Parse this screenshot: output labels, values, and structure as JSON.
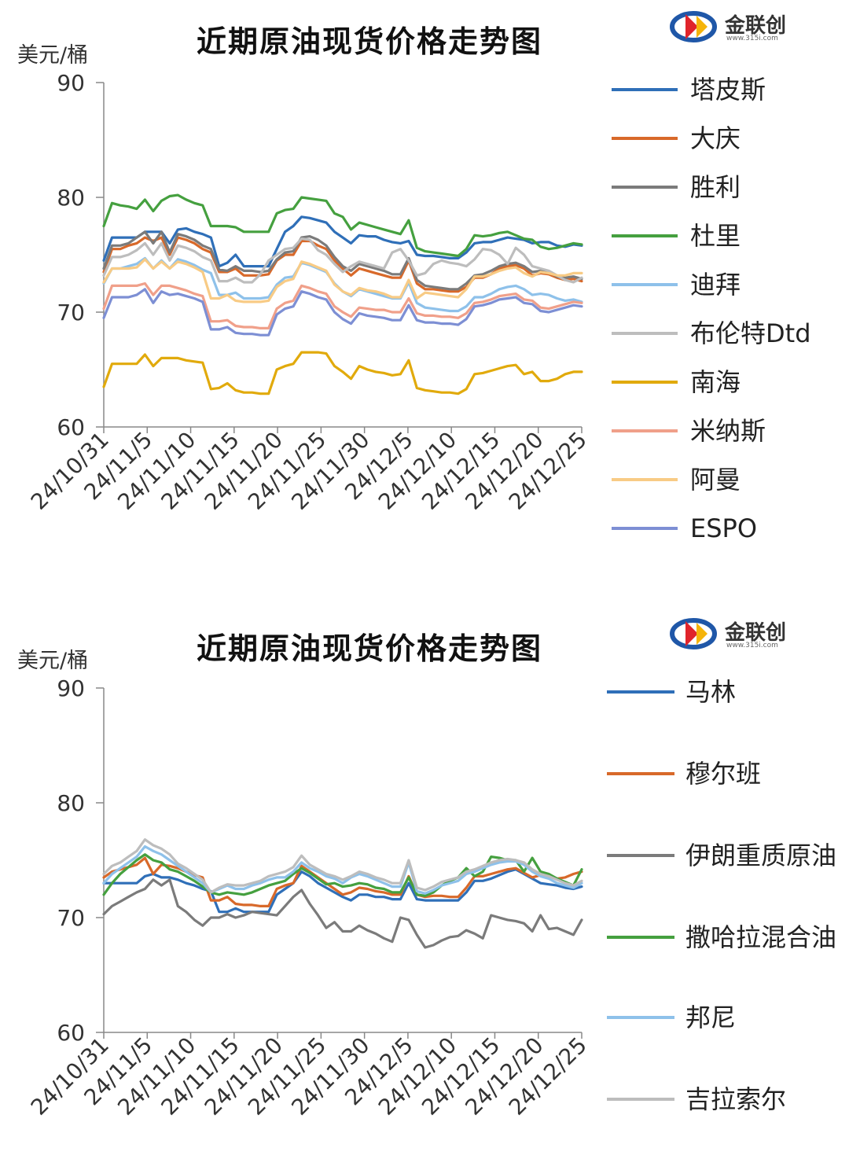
{
  "logo": {
    "text": "金联创",
    "sub": "www.315i.com"
  },
  "chart_data": [
    {
      "type": "line",
      "title": "近期原油现货价格走势图",
      "ylabel": "美元/桶",
      "ylim": [
        60,
        90
      ],
      "yticks": [
        "90",
        "80",
        "70",
        "60"
      ],
      "grid": false,
      "legend_position": "right",
      "xtick_labels": [
        "24/10/31",
        "24/11/5",
        "24/11/10",
        "24/11/15",
        "24/11/20",
        "24/11/25",
        "24/11/30",
        "24/12/5",
        "24/12/10",
        "24/12/15",
        "24/12/20",
        "24/12/25"
      ],
      "series": [
        {
          "name": "塔皮斯",
          "color": "#2f6fb8",
          "values": [
            74.5,
            76.5,
            76.5,
            76.5,
            76.5,
            77,
            77,
            77,
            76,
            77.2,
            77.3,
            77,
            76.8,
            76.5,
            74,
            74.3,
            75,
            74,
            74,
            74,
            74,
            75.5,
            77,
            77.5,
            78.3,
            78.2,
            78,
            77.8,
            77,
            76.5,
            76,
            76.7,
            76.6,
            76.6,
            76.3,
            76.1,
            76,
            76.2,
            75,
            74.9,
            74.9,
            74.8,
            74.7,
            74.7,
            75.2,
            76,
            76.1,
            76.1,
            76.3,
            76.5,
            76.4,
            76.3,
            76,
            76.1,
            76.1,
            75.8,
            75.7,
            75.9,
            75.8
          ]
        },
        {
          "name": "大庆",
          "color": "#d8692a",
          "values": [
            73.5,
            75.5,
            75.5,
            75.8,
            76,
            76.5,
            76.2,
            76.5,
            75,
            76.5,
            76.3,
            76,
            75.5,
            75.2,
            73.5,
            73.5,
            73.8,
            73.2,
            73.2,
            73.2,
            73.3,
            74.5,
            75,
            75,
            76.2,
            76.2,
            75.8,
            75.5,
            74.5,
            73.8,
            73.2,
            73.8,
            73.6,
            73.4,
            73.2,
            73,
            73,
            74.5,
            72.5,
            72,
            72,
            71.9,
            71.8,
            71.8,
            72.2,
            73,
            73,
            73.3,
            73.8,
            74,
            74.1,
            73.8,
            73.2,
            73.4,
            73.3,
            73,
            72.8,
            72.9,
            72.7
          ]
        },
        {
          "name": "胜利",
          "color": "#7b7b7b",
          "values": [
            73.8,
            75.8,
            75.8,
            76,
            76.5,
            77,
            76,
            77,
            75.2,
            76.8,
            76.6,
            76.3,
            75.8,
            75.5,
            73.7,
            73.6,
            74,
            73.6,
            73.6,
            73.5,
            73.6,
            74.6,
            75.2,
            75.3,
            76.5,
            76.6,
            76.3,
            75.8,
            74.8,
            74,
            73.6,
            74.2,
            74,
            73.8,
            73.6,
            73.3,
            73.3,
            74.7,
            72.8,
            72.3,
            72.2,
            72.1,
            72,
            72,
            72.5,
            73.2,
            73.3,
            73.6,
            74,
            74.2,
            74.3,
            74,
            73.5,
            73.6,
            73.5,
            73.1,
            73,
            73.1,
            72.9
          ]
        },
        {
          "name": "杜里",
          "color": "#45a03f",
          "values": [
            77.5,
            79.5,
            79.3,
            79.2,
            79,
            79.8,
            78.8,
            79.7,
            80.1,
            80.2,
            79.8,
            79.5,
            79.3,
            77.5,
            77.5,
            77.5,
            77.4,
            77,
            77,
            77,
            77,
            78.6,
            78.9,
            79,
            80,
            79.9,
            79.8,
            79.7,
            78.6,
            78.3,
            77.2,
            77.8,
            77.6,
            77.4,
            77.2,
            77,
            76.8,
            78,
            75.6,
            75.3,
            75.2,
            75.1,
            75,
            74.9,
            75.5,
            76.7,
            76.6,
            76.7,
            76.9,
            77,
            76.7,
            76.4,
            76.3,
            75.7,
            75.5,
            75.6,
            75.8,
            76,
            75.9
          ]
        },
        {
          "name": "迪拜",
          "color": "#8ec1ea",
          "values": [
            72.5,
            73.8,
            73.8,
            74,
            74.2,
            74.7,
            73.8,
            74.5,
            73.8,
            74.6,
            74.4,
            74.1,
            73.7,
            73.4,
            71.5,
            71.5,
            71.7,
            71.2,
            71.2,
            71.2,
            71.3,
            72.4,
            73,
            73.1,
            74.3,
            74.1,
            73.8,
            73.5,
            72.5,
            71.8,
            71.4,
            72,
            71.8,
            71.6,
            71.4,
            71.2,
            71.2,
            72.6,
            70.8,
            70.4,
            70.3,
            70.2,
            70.1,
            70.1,
            70.5,
            71.3,
            71.3,
            71.6,
            72,
            72.2,
            72.3,
            72,
            71.5,
            71.6,
            71.5,
            71.2,
            71,
            71.1,
            70.9
          ]
        },
        {
          "name": "布伦特Dtd",
          "color": "#bdbdbd",
          "values": [
            73.2,
            74.8,
            74.8,
            75,
            75.4,
            76,
            75,
            76,
            74.5,
            75.8,
            75.6,
            75.3,
            74.8,
            74.5,
            72.7,
            72.7,
            73,
            72.6,
            72.6,
            73.3,
            74.5,
            75,
            75.5,
            75.6,
            76.4,
            76.3,
            75.4,
            75,
            74.2,
            73.5,
            74,
            74.4,
            74.2,
            74,
            73.8,
            75.2,
            75.5,
            74.5,
            73.2,
            73.4,
            74.2,
            74.5,
            74.3,
            74.2,
            74,
            74.6,
            75.5,
            75.4,
            75,
            74.2,
            75.6,
            75,
            74,
            73.8,
            73.6,
            73.2,
            72.8,
            72.6,
            73
          ]
        },
        {
          "name": "南海",
          "color": "#e1aa0c",
          "values": [
            63.5,
            65.5,
            65.5,
            65.5,
            65.5,
            66.3,
            65.3,
            66,
            66,
            66,
            65.8,
            65.7,
            65.6,
            63.3,
            63.4,
            63.8,
            63.2,
            63,
            63,
            62.9,
            62.9,
            65,
            65.3,
            65.5,
            66.5,
            66.5,
            66.5,
            66.4,
            65.3,
            64.8,
            64.2,
            65.3,
            65,
            64.8,
            64.7,
            64.5,
            64.6,
            65.8,
            63.4,
            63.2,
            63.1,
            63,
            63,
            62.9,
            63.3,
            64.6,
            64.7,
            64.9,
            65.1,
            65.3,
            65.4,
            64.6,
            64.8,
            64,
            64,
            64.2,
            64.6,
            64.8,
            64.8
          ]
        },
        {
          "name": "米纳斯",
          "color": "#f0a08a",
          "values": [
            70.3,
            72.3,
            72.3,
            72.3,
            72.3,
            72.5,
            71.5,
            72.3,
            72.3,
            72.1,
            71.9,
            71.6,
            71.4,
            69.2,
            69.2,
            69.3,
            68.8,
            68.7,
            68.7,
            68.6,
            68.6,
            70.3,
            70.8,
            71,
            72.3,
            72.1,
            71.8,
            71.6,
            70.5,
            70,
            69.6,
            70.4,
            70.3,
            70.2,
            70.2,
            70,
            70,
            71.2,
            69.9,
            69.7,
            69.7,
            69.6,
            69.6,
            69.5,
            69.9,
            70.8,
            70.9,
            71.1,
            71.4,
            71.5,
            71.6,
            71.1,
            71,
            70.4,
            70.3,
            70.5,
            70.7,
            70.9,
            70.8
          ]
        },
        {
          "name": "阿曼",
          "color": "#f8cb85",
          "values": [
            72.6,
            73.8,
            73.8,
            73.8,
            73.9,
            74.6,
            73.8,
            74.4,
            73.8,
            74.4,
            74.2,
            73.9,
            73.5,
            71.2,
            71.2,
            71.5,
            71,
            70.9,
            70.9,
            70.9,
            71,
            72.2,
            72.7,
            72.9,
            74.4,
            74.2,
            73.9,
            73.6,
            72.4,
            71.8,
            71.5,
            72.1,
            71.9,
            71.8,
            71.6,
            71.3,
            71.3,
            72.8,
            71.2,
            71.7,
            71.6,
            71.5,
            71.4,
            71.3,
            72,
            73.1,
            73.1,
            73.3,
            73.6,
            73.8,
            73.9,
            73.4,
            73.1,
            73.5,
            73.4,
            73.2,
            73.2,
            73.4,
            73.4
          ]
        },
        {
          "name": "ESPO",
          "color": "#7d8fd4",
          "values": [
            69.5,
            71.3,
            71.3,
            71.3,
            71.5,
            72,
            70.8,
            71.8,
            71.5,
            71.6,
            71.4,
            71.2,
            70.9,
            68.5,
            68.5,
            68.7,
            68.2,
            68.1,
            68.1,
            68,
            68,
            69.8,
            70.3,
            70.5,
            71.8,
            71.6,
            71.3,
            71.1,
            70,
            69.4,
            69,
            69.9,
            69.7,
            69.6,
            69.5,
            69.3,
            69.3,
            70.6,
            69.3,
            69.1,
            69.1,
            69,
            69,
            68.9,
            69.4,
            70.5,
            70.6,
            70.8,
            71.1,
            71.2,
            71.3,
            70.8,
            70.7,
            70.1,
            70,
            70.2,
            70.4,
            70.6,
            70.5
          ]
        }
      ]
    },
    {
      "type": "line",
      "title": "近期原油现货价格走势图",
      "ylabel": "美元/桶",
      "ylim": [
        60,
        90
      ],
      "yticks": [
        "90",
        "80",
        "70",
        "60"
      ],
      "grid": false,
      "legend_position": "right",
      "xtick_labels": [
        "24/10/31",
        "24/11/5",
        "24/11/10",
        "24/11/15",
        "24/11/20",
        "24/11/25",
        "24/11/30",
        "24/12/5",
        "24/12/10",
        "24/12/15",
        "24/12/20",
        "24/12/25"
      ],
      "series": [
        {
          "name": "马林",
          "color": "#2f6fb8",
          "values": [
            73,
            73,
            73,
            73,
            73,
            73.6,
            73.8,
            73.5,
            73.5,
            73.3,
            73,
            72.8,
            72.5,
            72.3,
            70.5,
            70.5,
            70.8,
            70.5,
            70.5,
            70.5,
            70.5,
            72,
            72.5,
            73,
            74,
            73.6,
            73,
            72.6,
            72.2,
            71.8,
            71.5,
            72,
            72,
            71.8,
            71.8,
            71.6,
            71.6,
            73,
            71.6,
            71.5,
            71.5,
            71.5,
            71.5,
            71.5,
            72.2,
            73.2,
            73.2,
            73.4,
            73.7,
            74,
            74.2,
            73.8,
            73.4,
            73,
            72.9,
            72.8,
            72.6,
            72.5,
            72.7
          ]
        },
        {
          "name": "穆尔班",
          "color": "#d8692a",
          "values": [
            73.5,
            74,
            74.2,
            74.4,
            74.6,
            75.2,
            73.8,
            74.6,
            74.5,
            74.3,
            74,
            73.7,
            73.5,
            71.5,
            71.5,
            71.8,
            71.2,
            71.1,
            71.1,
            71,
            71,
            72.5,
            72.8,
            73,
            74.5,
            74,
            73.5,
            73,
            72.5,
            72,
            72.2,
            72.6,
            72.5,
            72.3,
            72.2,
            72,
            72,
            73.6,
            72,
            71.8,
            71.9,
            71.9,
            71.8,
            71.8,
            72.6,
            73.6,
            73.6,
            73.8,
            74,
            74.2,
            74.3,
            73.9,
            73.5,
            73.7,
            73.6,
            73.4,
            73.5,
            73.8,
            74
          ]
        },
        {
          "name": "伊朗重质原油",
          "color": "#7b7b7b",
          "values": [
            70.3,
            71,
            71.4,
            71.8,
            72.2,
            72.5,
            73.3,
            72.8,
            73.3,
            71,
            70.5,
            69.8,
            69.3,
            70,
            70,
            70.3,
            70,
            70.2,
            70.5,
            70.4,
            70.3,
            70.2,
            71,
            71.8,
            72.4,
            71.2,
            70.2,
            69.1,
            69.6,
            68.8,
            68.8,
            69.3,
            68.9,
            68.6,
            68.2,
            67.9,
            70,
            69.8,
            68.5,
            67.4,
            67.6,
            68,
            68.3,
            68.4,
            68.9,
            68.6,
            68.2,
            70.2,
            70,
            69.8,
            69.7,
            69.5,
            68.8,
            70.2,
            69,
            69.1,
            68.8,
            68.5,
            69.8
          ]
        },
        {
          "name": "撒哈拉混合油",
          "color": "#45a03f",
          "values": [
            72,
            73,
            73.8,
            74.4,
            75,
            75.5,
            75,
            74.8,
            74.2,
            74,
            73.6,
            73.2,
            72.7,
            72.2,
            72,
            72.2,
            72.1,
            72,
            72.2,
            72.5,
            72.8,
            73,
            73.2,
            73.8,
            74.3,
            73.9,
            73.4,
            72.9,
            73,
            72.7,
            72.8,
            73,
            72.9,
            72.6,
            72.5,
            72.2,
            72.2,
            73.5,
            72,
            71.9,
            72.2,
            72.8,
            73.2,
            73.5,
            74.3,
            73.6,
            74,
            75.3,
            75.2,
            75,
            75,
            74,
            75.2,
            74,
            73.8,
            73.4,
            73.1,
            72.8,
            74.2
          ]
        },
        {
          "name": "邦尼",
          "color": "#8ec1ea",
          "values": [
            73,
            73.8,
            74.3,
            74.8,
            75.3,
            76.2,
            75.8,
            75.5,
            75,
            74.5,
            74,
            73.5,
            73,
            72.2,
            72.5,
            72.8,
            72.5,
            72.5,
            72.8,
            73,
            73.3,
            73.5,
            73.5,
            74,
            74.8,
            74.3,
            74,
            73.6,
            73.4,
            73,
            73.5,
            73.8,
            73.6,
            73.3,
            73,
            72.7,
            72.7,
            74.8,
            72.3,
            72.1,
            72.4,
            72.8,
            73,
            73.2,
            73.8,
            74,
            74.3,
            74.6,
            74.8,
            74.9,
            74.9,
            74.6,
            74,
            73.6,
            73.4,
            73,
            72.8,
            72.6,
            73
          ]
        },
        {
          "name": "吉拉索尔",
          "color": "#bdbdbd",
          "values": [
            73.8,
            74.5,
            74.8,
            75.3,
            75.8,
            76.8,
            76.3,
            76,
            75.5,
            74.7,
            74.3,
            73.8,
            73.3,
            72.2,
            72.6,
            72.9,
            72.8,
            72.8,
            73,
            73.2,
            73.6,
            73.8,
            74,
            74.4,
            75.4,
            74.6,
            74.2,
            73.8,
            73.6,
            73.3,
            73.6,
            74,
            73.8,
            73.5,
            73.3,
            73,
            73,
            75,
            72.6,
            72.4,
            72.7,
            73.1,
            73.3,
            73.5,
            74,
            74.2,
            74.5,
            74.8,
            75,
            75.1,
            75,
            74.8,
            74.2,
            73.8,
            73.6,
            73.3,
            73,
            72.8,
            73.2
          ]
        }
      ]
    }
  ]
}
